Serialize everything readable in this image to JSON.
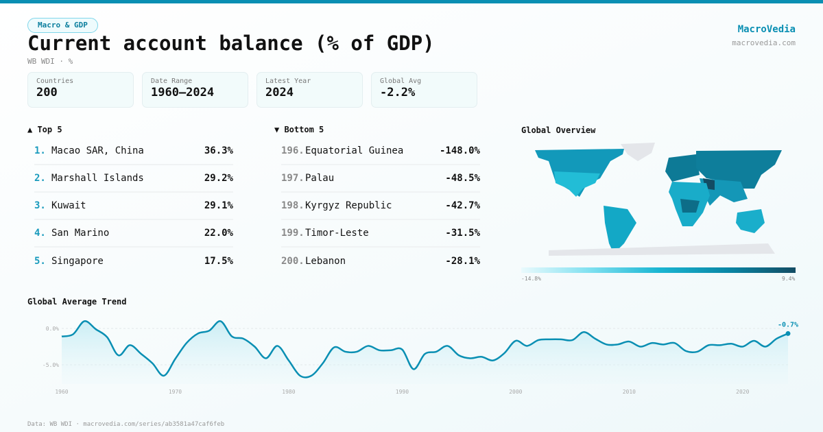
{
  "header": {
    "category": "Macro & GDP",
    "title": "Current account balance (% of GDP)",
    "subtitle": "WB WDI · %",
    "brand": "MacroVedia",
    "brand_url": "macrovedia.com"
  },
  "stats": [
    {
      "label": "Countries",
      "value": "200"
    },
    {
      "label": "Date Range",
      "value": "1960–2024"
    },
    {
      "label": "Latest Year",
      "value": "2024"
    },
    {
      "label": "Global Avg",
      "value": "-2.2%"
    }
  ],
  "top": {
    "title": "▲ Top 5",
    "items": [
      {
        "rank": "1.",
        "name": "Macao SAR, China",
        "value": "36.3%"
      },
      {
        "rank": "2.",
        "name": "Marshall Islands",
        "value": "29.2%"
      },
      {
        "rank": "3.",
        "name": "Kuwait",
        "value": "29.1%"
      },
      {
        "rank": "4.",
        "name": "San Marino",
        "value": "22.0%"
      },
      {
        "rank": "5.",
        "name": "Singapore",
        "value": "17.5%"
      }
    ]
  },
  "bottom": {
    "title": "▼ Bottom 5",
    "items": [
      {
        "rank": "196.",
        "name": "Equatorial Guinea",
        "value": "-148.0%"
      },
      {
        "rank": "197.",
        "name": "Palau",
        "value": "-48.5%"
      },
      {
        "rank": "198.",
        "name": "Kyrgyz Republic",
        "value": "-42.7%"
      },
      {
        "rank": "199.",
        "name": "Timor-Leste",
        "value": "-31.5%"
      },
      {
        "rank": "200.",
        "name": "Lebanon",
        "value": "-28.1%"
      }
    ]
  },
  "map": {
    "title": "Global Overview",
    "legend_min": "-14.8%",
    "legend_max": "9.4%",
    "colors": [
      "#eafafd",
      "#7fe0f0",
      "#1bb6d3",
      "#0a87a6",
      "#134c63"
    ]
  },
  "chart_data": {
    "type": "area",
    "title": "Global Average Trend",
    "x": [
      1960,
      1961,
      1962,
      1963,
      1964,
      1965,
      1966,
      1967,
      1968,
      1969,
      1970,
      1971,
      1972,
      1973,
      1974,
      1975,
      1976,
      1977,
      1978,
      1979,
      1980,
      1981,
      1982,
      1983,
      1984,
      1985,
      1986,
      1987,
      1988,
      1989,
      1990,
      1991,
      1992,
      1993,
      1994,
      1995,
      1996,
      1997,
      1998,
      1999,
      2000,
      2001,
      2002,
      2003,
      2004,
      2005,
      2006,
      2007,
      2008,
      2009,
      2010,
      2011,
      2012,
      2013,
      2014,
      2015,
      2016,
      2017,
      2018,
      2019,
      2020,
      2021,
      2022,
      2023,
      2024
    ],
    "values": [
      -1.1,
      -0.8,
      1.0,
      -0.1,
      -1.2,
      -3.7,
      -2.3,
      -3.5,
      -4.8,
      -6.5,
      -4.2,
      -2.0,
      -0.7,
      -0.3,
      1.0,
      -1.1,
      -1.4,
      -2.5,
      -4.1,
      -2.4,
      -4.4,
      -6.5,
      -6.5,
      -4.8,
      -2.6,
      -3.2,
      -3.2,
      -2.4,
      -3.0,
      -3.0,
      -2.9,
      -5.6,
      -3.5,
      -3.2,
      -2.4,
      -3.7,
      -4.1,
      -3.9,
      -4.4,
      -3.4,
      -1.7,
      -2.4,
      -1.6,
      -1.5,
      -1.5,
      -1.6,
      -0.5,
      -1.4,
      -2.2,
      -2.2,
      -1.8,
      -2.5,
      -2.0,
      -2.2,
      -2.0,
      -3.1,
      -3.2,
      -2.3,
      -2.3,
      -2.1,
      -2.5,
      -1.7,
      -2.5,
      -1.4,
      -0.7
    ],
    "yticks": [
      {
        "v": 0,
        "label": "0.0%"
      },
      {
        "v": -5,
        "label": "-5.0%"
      }
    ],
    "xticks": [
      1960,
      1970,
      1980,
      1990,
      2000,
      2010,
      2020
    ],
    "last_label": "-0.7%",
    "color": "#0a8fb3",
    "grid": true
  },
  "footer": "Data: WB WDI · macrovedia.com/series/ab3581a47caf6feb"
}
